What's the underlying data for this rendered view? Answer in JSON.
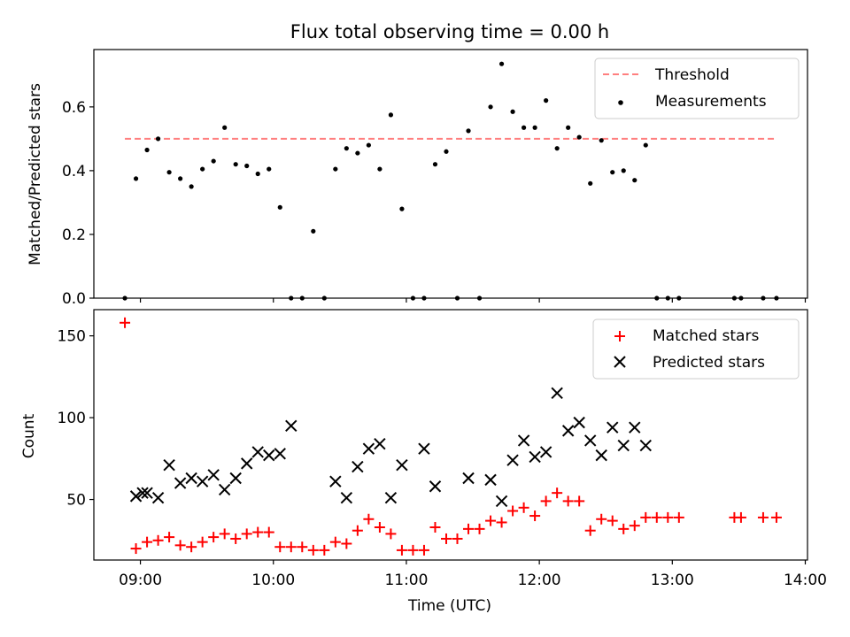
{
  "figure": {
    "title": "Flux total observing time = 0.00 h"
  },
  "colors": {
    "threshold": "#ff7f7f",
    "measurements": "#000000",
    "matched": "#ff0000",
    "predicted": "#000000"
  },
  "chart_data": [
    {
      "type": "scatter",
      "title": "Flux total observing time = 0.00 h",
      "ylabel": "Matched/Predicted stars",
      "xlabel": "",
      "x_type": "time",
      "xlim": [
        "08:39",
        "14:01"
      ],
      "ylim": [
        0,
        0.78
      ],
      "yticks": [
        0.0,
        0.2,
        0.4,
        0.6
      ],
      "ytick_labels": [
        "0.0",
        "0.2",
        "0.4",
        "0.6"
      ],
      "xticks": [
        "09:00",
        "10:00",
        "11:00",
        "12:00",
        "13:00",
        "14:00"
      ],
      "legend": {
        "position": "top-right",
        "entries": [
          "Threshold",
          "Measurements"
        ]
      },
      "threshold": {
        "name": "Threshold",
        "y": 0.5,
        "x_start": "08:53",
        "x_end": "13:47",
        "style": "dashed"
      },
      "series": [
        {
          "name": "Measurements",
          "marker": "dot",
          "x": [
            "08:53",
            "08:58",
            "09:03",
            "09:08",
            "09:13",
            "09:18",
            "09:23",
            "09:28",
            "09:33",
            "09:38",
            "09:43",
            "09:48",
            "09:53",
            "09:58",
            "10:03",
            "10:08",
            "10:13",
            "10:18",
            "10:23",
            "10:28",
            "10:33",
            "10:38",
            "10:43",
            "10:48",
            "10:53",
            "10:58",
            "11:03",
            "11:08",
            "11:13",
            "11:18",
            "11:23",
            "11:28",
            "11:33",
            "11:38",
            "11:43",
            "11:48",
            "11:53",
            "11:58",
            "12:03",
            "12:08",
            "12:13",
            "12:18",
            "12:23",
            "12:28",
            "12:33",
            "12:38",
            "12:43",
            "12:48",
            "12:53",
            "12:58",
            "13:03",
            "13:28",
            "13:31",
            "13:41",
            "13:47"
          ],
          "y": [
            0.0,
            0.375,
            0.465,
            0.5,
            0.395,
            0.375,
            0.35,
            0.405,
            0.43,
            0.535,
            0.42,
            0.415,
            0.39,
            0.405,
            0.285,
            0.0,
            0.0,
            0.21,
            0.0,
            0.405,
            0.47,
            0.455,
            0.48,
            0.405,
            0.575,
            0.28,
            0.0,
            0.0,
            0.42,
            0.46,
            0.0,
            0.525,
            0.0,
            0.6,
            0.735,
            0.585,
            0.535,
            0.535,
            0.62,
            0.47,
            0.535,
            0.505,
            0.36,
            0.495,
            0.395,
            0.4,
            0.37,
            0.48,
            0.0,
            0.0,
            0.0,
            0.0,
            0.0,
            0.0,
            0.0
          ]
        }
      ]
    },
    {
      "type": "scatter",
      "title": "",
      "ylabel": "Count",
      "xlabel": "Time (UTC)",
      "x_type": "time",
      "xlim": [
        "08:39",
        "14:01"
      ],
      "ylim": [
        13,
        166
      ],
      "yticks": [
        50,
        100,
        150
      ],
      "ytick_labels": [
        "50",
        "100",
        "150"
      ],
      "xticks": [
        "09:00",
        "10:00",
        "11:00",
        "12:00",
        "13:00",
        "14:00"
      ],
      "xtick_labels": [
        "09:00",
        "10:00",
        "11:00",
        "12:00",
        "13:00",
        "14:00"
      ],
      "legend": {
        "position": "top-right",
        "entries": [
          "Matched stars",
          "Predicted stars"
        ]
      },
      "series": [
        {
          "name": "Matched stars",
          "marker": "plus",
          "x": [
            "08:53",
            "08:58",
            "09:03",
            "09:08",
            "09:13",
            "09:18",
            "09:23",
            "09:28",
            "09:33",
            "09:38",
            "09:43",
            "09:48",
            "09:53",
            "09:58",
            "10:03",
            "10:08",
            "10:13",
            "10:18",
            "10:23",
            "10:28",
            "10:33",
            "10:38",
            "10:43",
            "10:48",
            "10:53",
            "10:58",
            "11:03",
            "11:08",
            "11:13",
            "11:18",
            "11:23",
            "11:28",
            "11:33",
            "11:38",
            "11:43",
            "11:48",
            "11:53",
            "11:58",
            "12:03",
            "12:08",
            "12:13",
            "12:18",
            "12:23",
            "12:28",
            "12:33",
            "12:38",
            "12:43",
            "12:48",
            "12:53",
            "12:58",
            "13:03",
            "13:28",
            "13:31",
            "13:41",
            "13:47"
          ],
          "y": [
            158,
            20,
            24,
            25,
            27,
            22,
            21,
            24,
            27,
            29,
            26,
            29,
            30,
            30,
            21,
            21,
            21,
            19,
            19,
            24,
            23,
            31,
            38,
            33,
            29,
            19,
            19,
            19,
            33,
            26,
            26,
            32,
            32,
            37,
            36,
            43,
            45,
            40,
            49,
            54,
            49,
            49,
            31,
            38,
            37,
            32,
            34,
            39,
            39,
            39,
            39,
            39,
            39,
            39,
            39
          ]
        },
        {
          "name": "Predicted stars",
          "marker": "x",
          "x": [
            "08:58",
            "09:01",
            "09:03",
            "09:08",
            "09:13",
            "09:18",
            "09:23",
            "09:28",
            "09:33",
            "09:38",
            "09:43",
            "09:48",
            "09:53",
            "09:58",
            "10:03",
            "10:08",
            "10:28",
            "10:33",
            "10:38",
            "10:43",
            "10:48",
            "10:53",
            "10:58",
            "11:08",
            "11:13",
            "11:28",
            "11:38",
            "11:43",
            "11:48",
            "11:53",
            "11:58",
            "12:03",
            "12:08",
            "12:13",
            "12:18",
            "12:23",
            "12:28",
            "12:33",
            "12:38",
            "12:43",
            "12:48"
          ],
          "y": [
            52,
            54,
            54,
            51,
            71,
            60,
            63,
            61,
            65,
            56,
            63,
            72,
            79,
            77,
            78,
            95,
            61,
            51,
            70,
            81,
            84,
            51,
            71,
            81,
            58,
            63,
            62,
            49,
            74,
            86,
            76,
            79,
            115,
            92,
            97,
            86,
            77,
            94,
            83,
            94,
            83
          ]
        }
      ]
    }
  ]
}
